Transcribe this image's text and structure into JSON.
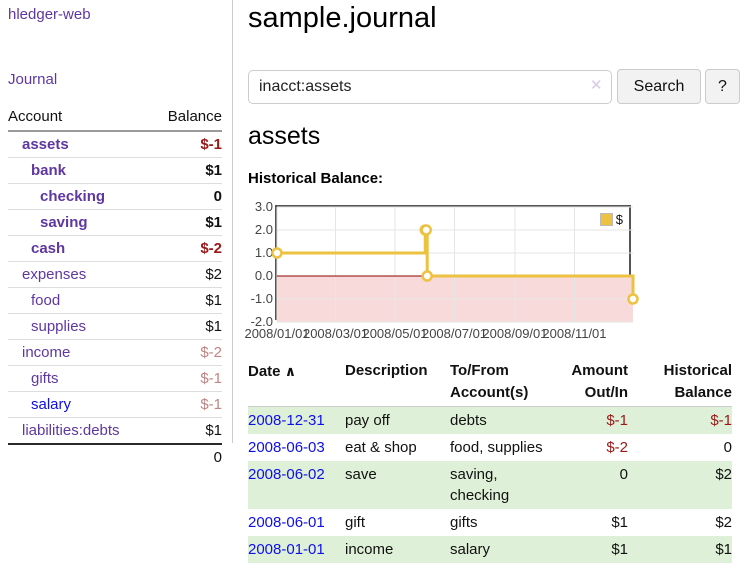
{
  "colors": {
    "link_purple": "#5f37a0",
    "link_blue": "#0f0fe8",
    "negative_strong": "#991818",
    "negative_muted": "#c08484",
    "row_green": "#dff0d8",
    "chart_gold": "#EDC240",
    "chart_negative_fill": "#f9dada",
    "chart_zero_line": "#8b0000"
  },
  "sidebar": {
    "app_title": "hledger-web",
    "journal_link": "Journal",
    "accounts": {
      "col_account": "Account",
      "col_balance": "Balance",
      "rows": [
        {
          "name": "assets",
          "balance": "$-1"
        },
        {
          "name": "bank",
          "balance": "$1"
        },
        {
          "name": "checking",
          "balance": "0"
        },
        {
          "name": "saving",
          "balance": "$1"
        },
        {
          "name": "cash",
          "balance": "$-2"
        },
        {
          "name": "expenses",
          "balance": "$2"
        },
        {
          "name": "food",
          "balance": "$1"
        },
        {
          "name": "supplies",
          "balance": "$1"
        },
        {
          "name": "income",
          "balance": "$-2"
        },
        {
          "name": "gifts",
          "balance": "$-1"
        },
        {
          "name": "salary",
          "balance": "$-1"
        },
        {
          "name": "liabilities:debts",
          "balance": "$1"
        }
      ],
      "total": "0"
    }
  },
  "header": {
    "title": "sample.journal"
  },
  "search": {
    "value": "inacct:assets",
    "clear_label": "✕",
    "search_button": "Search",
    "help_button": "?"
  },
  "account_view": {
    "title": "assets",
    "chart_heading": "Historical Balance:"
  },
  "chart_data": {
    "type": "line",
    "step": true,
    "title": "Historical Balance:",
    "series": [
      {
        "name": "$",
        "color": "#EDC240",
        "points": [
          [
            "2008-01-01",
            1
          ],
          [
            "2008-06-01",
            2
          ],
          [
            "2008-06-02",
            2
          ],
          [
            "2008-06-03",
            0
          ],
          [
            "2008-12-31",
            -1
          ]
        ]
      }
    ],
    "x_range": [
      "2008-01-01",
      "2008-12-31"
    ],
    "ylim": [
      -2,
      3
    ],
    "y_ticks": [
      {
        "label": "3.0",
        "value": 3
      },
      {
        "label": "2.0",
        "value": 2
      },
      {
        "label": "1.0",
        "value": 1
      },
      {
        "label": "0.0",
        "value": 0
      },
      {
        "label": "-1.0",
        "value": -1
      },
      {
        "label": "-2.0",
        "value": -2
      }
    ],
    "x_ticks": [
      {
        "label": "2008/01/01",
        "date": "2008-01-01"
      },
      {
        "label": "2008/03/01",
        "date": "2008-03-01"
      },
      {
        "label": "2008/05/01",
        "date": "2008-05-01"
      },
      {
        "label": "2008/07/01",
        "date": "2008-07-01"
      },
      {
        "label": "2008/09/01",
        "date": "2008-09-01"
      },
      {
        "label": "2008/11/01",
        "date": "2008-11-01"
      }
    ],
    "legend": {
      "label": "$",
      "position": "top-right"
    },
    "grid": true
  },
  "register": {
    "headers": {
      "date": "Date",
      "sort_arrow": "∧",
      "description": "Description",
      "accounts": "To/From Account(s)",
      "amount": "Amount Out/In",
      "balance": "Historical Balance"
    },
    "rows": [
      {
        "date": "2008-12-31",
        "description": "pay off",
        "accounts": "debts",
        "amount": "$-1",
        "balance": "$-1"
      },
      {
        "date": "2008-06-03",
        "description": "eat & shop",
        "accounts": "food, supplies",
        "amount": "$-2",
        "balance": "0"
      },
      {
        "date": "2008-06-02",
        "description": "save",
        "accounts": "saving, checking",
        "amount": "0",
        "balance": "$2"
      },
      {
        "date": "2008-06-01",
        "description": "gift",
        "accounts": "gifts",
        "amount": "$1",
        "balance": "$2"
      },
      {
        "date": "2008-01-01",
        "description": "income",
        "accounts": "salary",
        "amount": "$1",
        "balance": "$1"
      }
    ]
  }
}
